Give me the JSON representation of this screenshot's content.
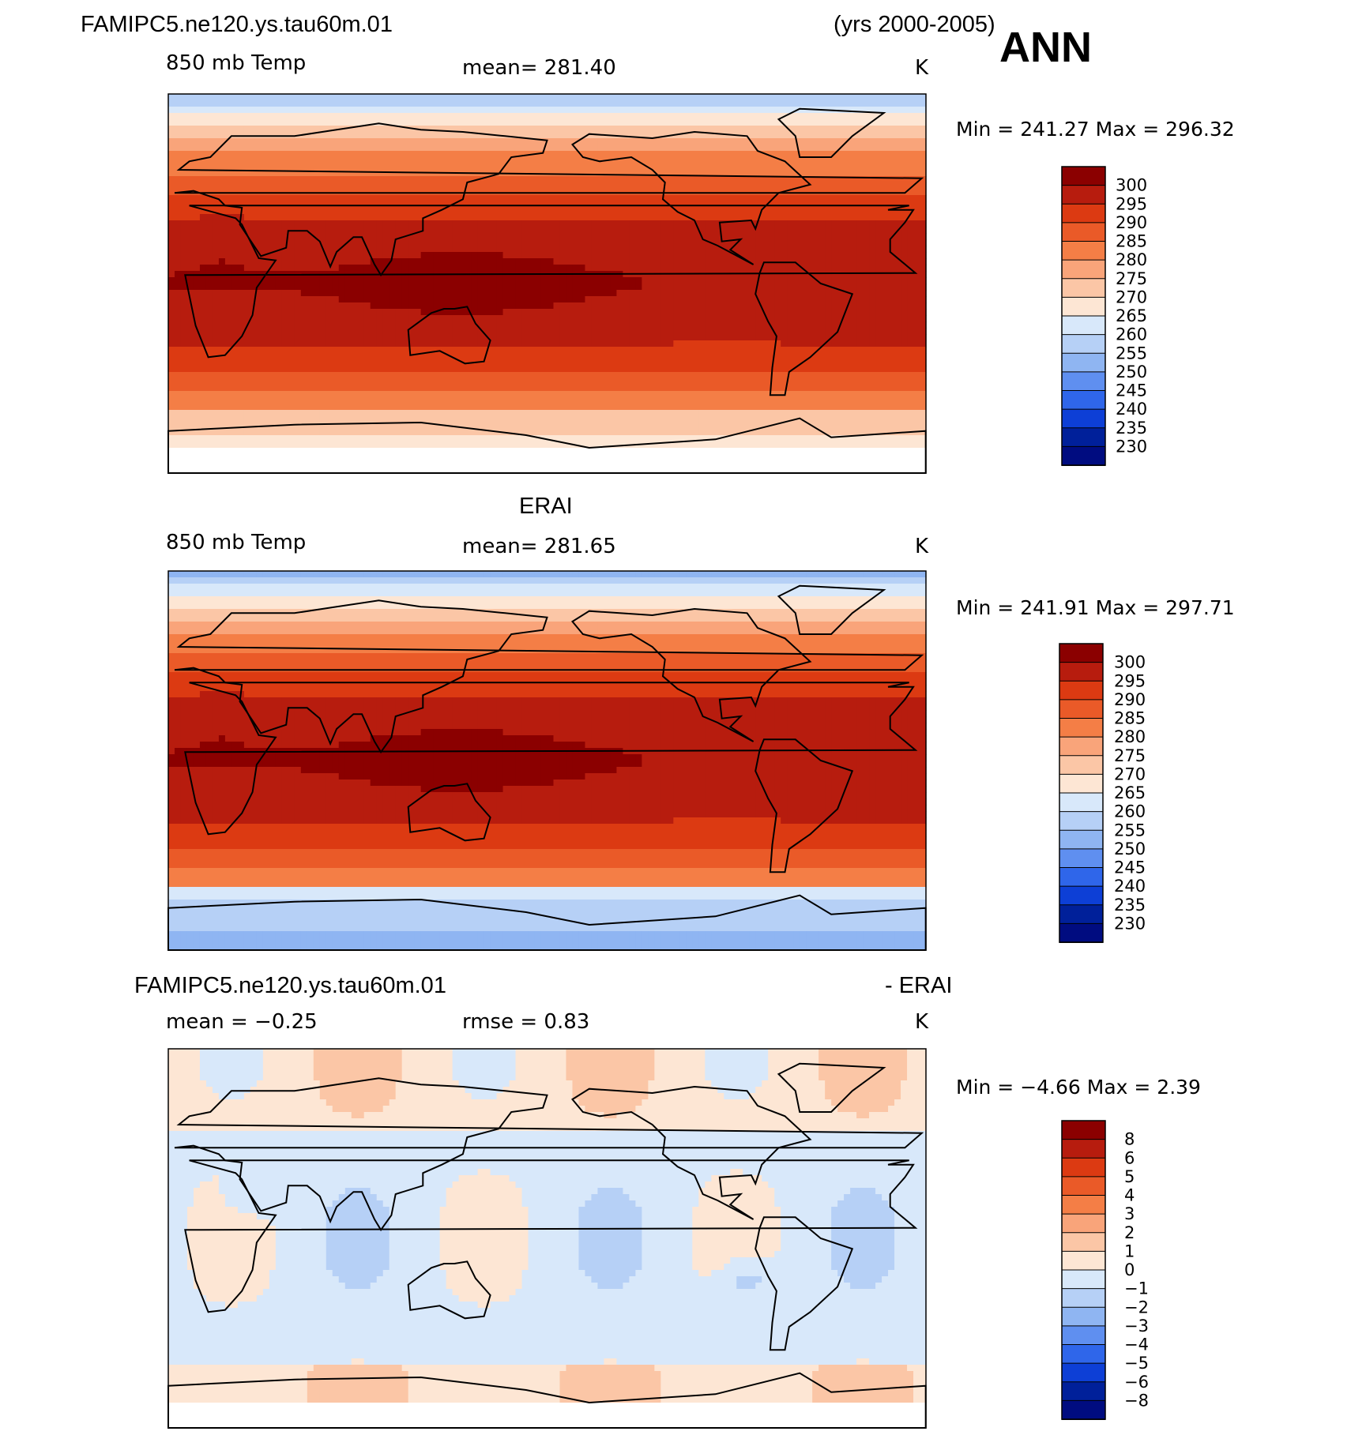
{
  "header": {
    "case_name": "FAMIPC5.ne120.ys.tau60m.01",
    "years": "(yrs 2000-2005)",
    "season": "ANN"
  },
  "panels": [
    {
      "id": "model",
      "title": "",
      "left_label": "850 mb Temp",
      "center_label": "mean=  281.40",
      "units": "K",
      "minmax": "Min  =  241.27  Max  =  296.32",
      "levels": [
        "300",
        "295",
        "290",
        "285",
        "280",
        "275",
        "270",
        "265",
        "260",
        "255",
        "250",
        "245",
        "240",
        "235",
        "230"
      ],
      "palette": "temp",
      "field": "model"
    },
    {
      "id": "obs",
      "title": "ERAI",
      "left_label": "850 mb Temp",
      "center_label": "mean=  281.65",
      "units": "K",
      "minmax": "Min  =  241.91  Max  =  297.71",
      "levels": [
        "300",
        "295",
        "290",
        "285",
        "280",
        "275",
        "270",
        "265",
        "260",
        "255",
        "250",
        "245",
        "240",
        "235",
        "230"
      ],
      "palette": "temp",
      "field": "obs"
    },
    {
      "id": "diff",
      "title_left": "FAMIPC5.ne120.ys.tau60m.01",
      "title_right": "- ERAI",
      "left_label": "mean  =   −0.25",
      "center_label": "rmse  =     0.83",
      "units": "K",
      "minmax": "Min  =    −4.66  Max  =      2.39",
      "levels": [
        "8",
        "6",
        "5",
        "4",
        "3",
        "2",
        "1",
        "0",
        "−1",
        "−2",
        "−3",
        "−4",
        "−5",
        "−6",
        "−8"
      ],
      "palette": "diff",
      "field": "diff"
    }
  ],
  "colors": {
    "temp": [
      "#8b0000",
      "#b71c0e",
      "#dc3a12",
      "#ea5a28",
      "#f47e46",
      "#f9a47a",
      "#fbc6a6",
      "#fde6d4",
      "#d8e8fa",
      "#b6d0f6",
      "#8fb5f2",
      "#5f8ff0",
      "#2f66ea",
      "#0d3fd6",
      "#00209a",
      "#000c80"
    ],
    "diff": [
      "#8b0000",
      "#b71c0e",
      "#dc3a12",
      "#ea5a28",
      "#f47e46",
      "#f9a47a",
      "#fbc6a6",
      "#fde6d4",
      "#d8e8fa",
      "#b6d0f6",
      "#8fb5f2",
      "#5f8ff0",
      "#2f66ea",
      "#0d3fd6",
      "#00209a",
      "#000c80"
    ]
  }
}
